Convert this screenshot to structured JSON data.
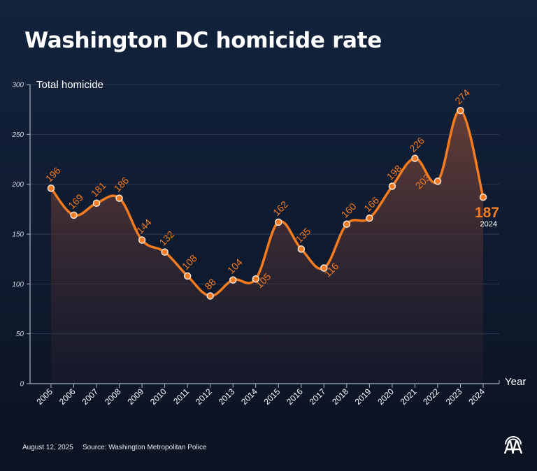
{
  "title": "Washington DC homicide rate",
  "footer": {
    "date": "August 12, 2025",
    "source": "Source: Washington Metropolitan Police"
  },
  "logo_text": "AA",
  "colors": {
    "line": "#f47b20",
    "label": "#f47b20",
    "background": "#12213a",
    "grid": "#2a3a55"
  },
  "chart_data": {
    "type": "line",
    "ylabel": "Total homicide",
    "xlabel": "Year",
    "ylim": [
      0,
      300
    ],
    "yticks": [
      0,
      50,
      100,
      150,
      200,
      250,
      300
    ],
    "grid": true,
    "x": [
      2005,
      2006,
      2007,
      2008,
      2009,
      2010,
      2011,
      2012,
      2013,
      2014,
      2015,
      2016,
      2017,
      2018,
      2019,
      2020,
      2021,
      2022,
      2023,
      2024
    ],
    "values": [
      196,
      169,
      181,
      186,
      144,
      132,
      108,
      88,
      104,
      105,
      162,
      135,
      116,
      160,
      166,
      198,
      226,
      203,
      274,
      187
    ],
    "highlight": {
      "value": "187",
      "year": "2024"
    }
  }
}
